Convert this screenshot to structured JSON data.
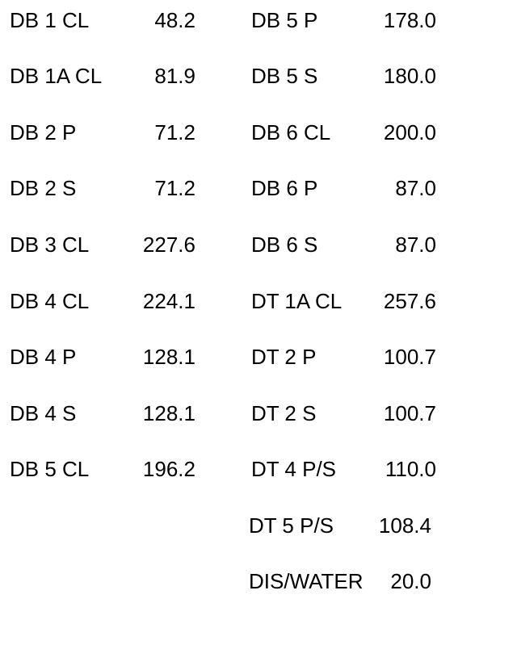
{
  "left_column": [
    {
      "name": "DB 1 CL",
      "value": "48.2"
    },
    {
      "name": "DB 1A CL",
      "value": "81.9"
    },
    {
      "name": "DB 2 P",
      "value": "71.2"
    },
    {
      "name": "DB 2 S",
      "value": "71.2"
    },
    {
      "name": "DB 3 CL",
      "value": "227.6"
    },
    {
      "name": "DB 4 CL",
      "value": "224.1"
    },
    {
      "name": "DB 4 P",
      "value": "128.1"
    },
    {
      "name": "DB 4 S",
      "value": "128.1"
    },
    {
      "name": "DB 5 CL",
      "value": "196.2"
    }
  ],
  "right_column": [
    {
      "name": "DB 5 P",
      "value": "178.0"
    },
    {
      "name": "DB 5 S",
      "value": "180.0"
    },
    {
      "name": "DB 6 CL",
      "value": "200.0"
    },
    {
      "name": "DB 6 P",
      "value": "87.0"
    },
    {
      "name": "DB 6 S",
      "value": "87.0"
    },
    {
      "name": "DT 1A CL",
      "value": "257.6"
    },
    {
      "name": "DT 2 P",
      "value": "100.7"
    },
    {
      "name": "DT 2 S",
      "value": "100.7"
    },
    {
      "name": "DT 4 P/S",
      "value": "110.0"
    },
    {
      "name": "DT 5 P/S",
      "value": "108.4"
    },
    {
      "name": "DIS/WATER",
      "value": "20.0"
    }
  ]
}
